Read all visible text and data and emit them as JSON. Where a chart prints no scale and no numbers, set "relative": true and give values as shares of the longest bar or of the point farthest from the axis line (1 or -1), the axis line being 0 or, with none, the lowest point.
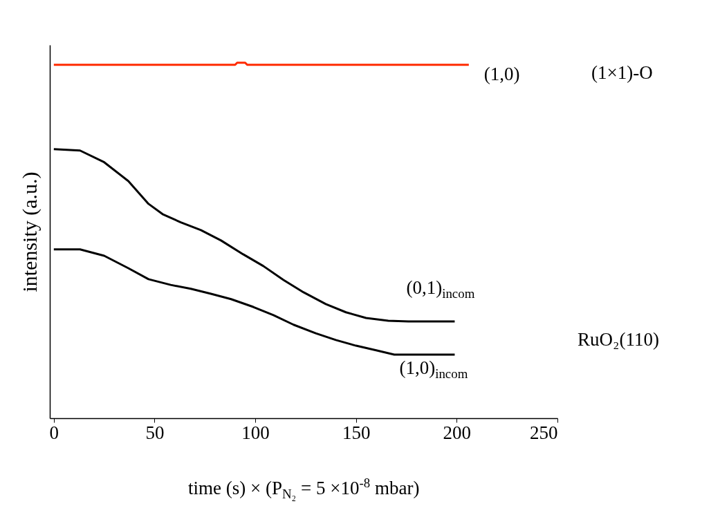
{
  "chart_data": {
    "type": "line",
    "xlabel": "time (s) × (P$_{N₂}$ = 5 ×10$^{-8}$ mbar)",
    "ylabel": "intensity (a.u.)",
    "relative": true,
    "xlim": [
      -2,
      250
    ],
    "xticks": [
      0,
      50,
      100,
      150,
      200,
      250
    ],
    "grid": false,
    "legend": false,
    "marker": "none",
    "line_style": "solid",
    "annotations": [
      "(1×1)-O",
      "RuO₂(110)"
    ],
    "series": [
      {
        "name": "(1,0)",
        "color": "#ff2a00",
        "x": [
          0,
          90,
          91,
          95,
          96,
          206
        ],
        "values": [
          0.994,
          0.994,
          1,
          1,
          0.994,
          0.994
        ]
      },
      {
        "name": "(0,1)$_{incom}$",
        "color": "#000000",
        "x": [
          0,
          13,
          25,
          37,
          47,
          54,
          63,
          73,
          83,
          94,
          104,
          114,
          124,
          135,
          145,
          155,
          166,
          176,
          199
        ],
        "values": [
          0.757,
          0.753,
          0.72,
          0.667,
          0.603,
          0.574,
          0.551,
          0.529,
          0.5,
          0.461,
          0.428,
          0.389,
          0.354,
          0.321,
          0.298,
          0.282,
          0.274,
          0.272,
          0.272
        ]
      },
      {
        "name": "(1,0)$_{incom}$",
        "color": "#000000",
        "x": [
          0,
          13,
          25,
          37,
          47,
          58,
          68,
          78,
          88,
          99,
          109,
          119,
          130,
          140,
          150,
          160,
          169,
          199
        ],
        "values": [
          0.475,
          0.475,
          0.457,
          0.422,
          0.391,
          0.375,
          0.364,
          0.35,
          0.335,
          0.313,
          0.29,
          0.263,
          0.239,
          0.22,
          0.204,
          0.191,
          0.179,
          0.179
        ]
      }
    ]
  }
}
